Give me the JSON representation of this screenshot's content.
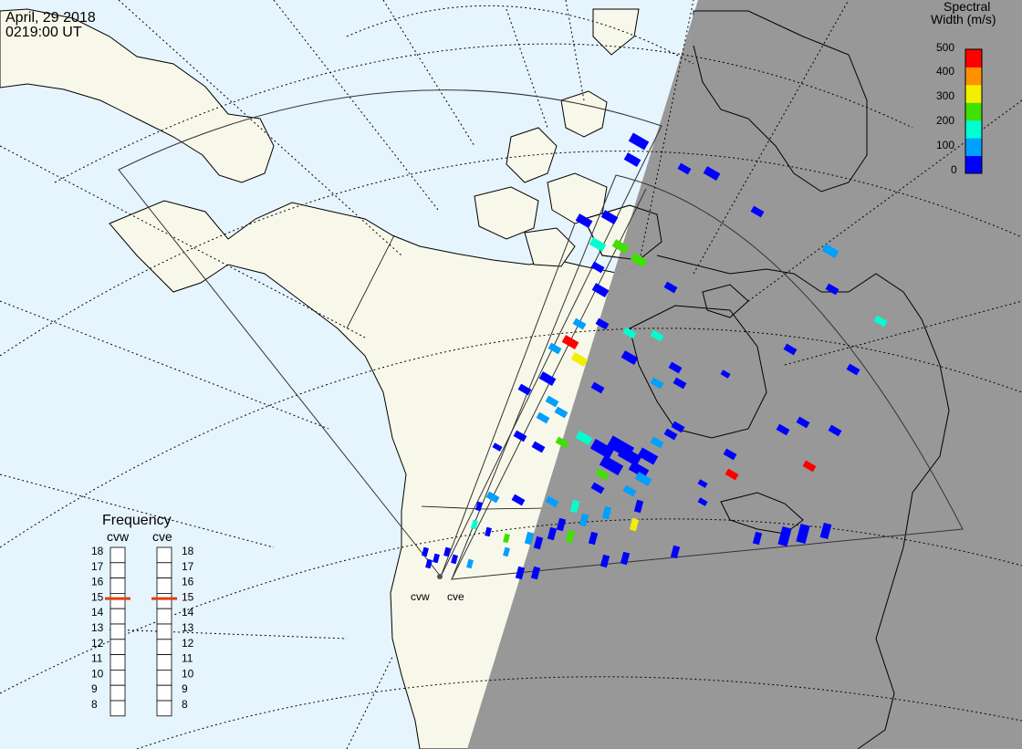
{
  "header": {
    "date": "April, 29 2018",
    "time": "0219:00 UT"
  },
  "colorbar": {
    "title_line1": "Spectral",
    "title_line2": "Width (m/s)",
    "ticks": [
      "500",
      "400",
      "300",
      "200",
      "100",
      "0"
    ],
    "colors": [
      "#0000ff",
      "#00a0ff",
      "#00ffd0",
      "#40e000",
      "#f0f000",
      "#ff9000",
      "#ff0000"
    ]
  },
  "radars": {
    "west_label": "cvw",
    "east_label": "cve"
  },
  "frequency": {
    "title": "Frequency",
    "left_label": "cvw",
    "right_label": "cve",
    "scale": [
      "18",
      "17",
      "16",
      "15",
      "14",
      "13",
      "12",
      "11",
      "10",
      "9",
      "8"
    ],
    "cvw_mhz": 14.9,
    "cve_mhz": 14.9,
    "marker_color": "#e04010"
  },
  "map": {
    "ocean_color": "#e6f4fd",
    "land_color": "#f8f8ea",
    "night_color": "#969696",
    "day_night_icon": "terminator-shading"
  }
}
